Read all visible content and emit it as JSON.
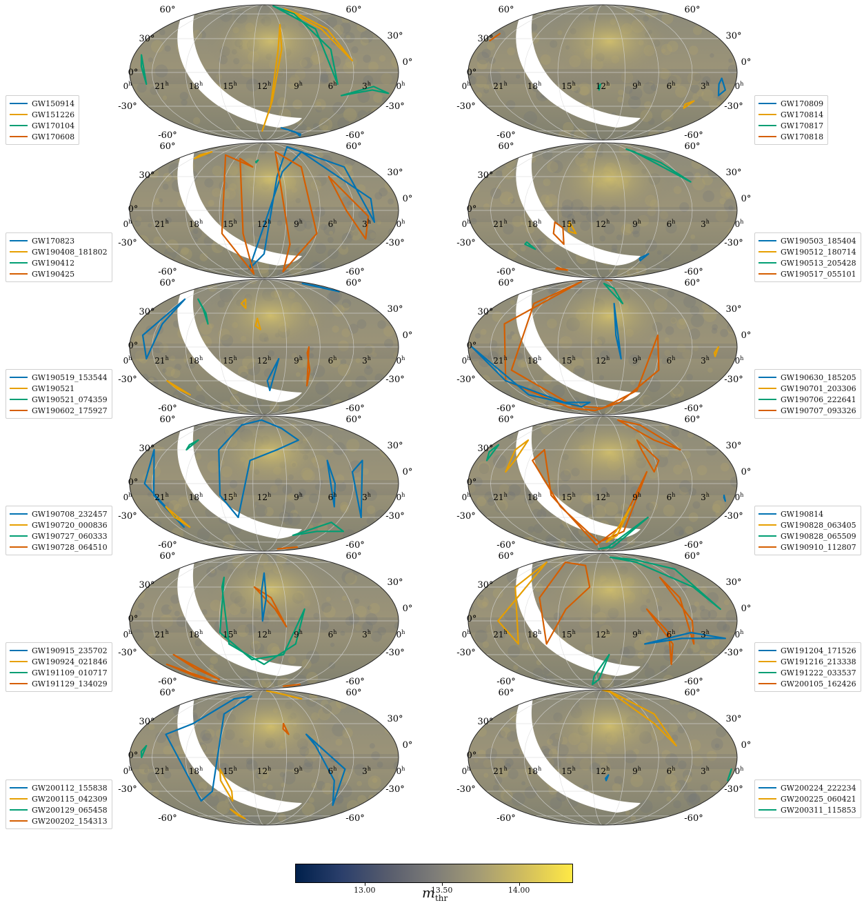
{
  "colorbar": {
    "label_main": "m",
    "label_sub": "thr",
    "ticks": [
      "13.00",
      "13.50",
      "14.00"
    ],
    "tick_values": [
      13.0,
      13.5,
      14.0
    ],
    "range": [
      12.55,
      14.35
    ],
    "colormap": "cividis",
    "colors": [
      "#00204c",
      "#2b3f6b",
      "#575c6d",
      "#7d7c78",
      "#a59c74",
      "#d3bf5d",
      "#ffe945"
    ]
  },
  "axis_labels": {
    "lat": [
      "60°",
      "30°",
      "0°",
      "-30°",
      "-60°"
    ],
    "ra": [
      "0h",
      "21h",
      "18h",
      "15h",
      "12h",
      "9h",
      "6h",
      "3h",
      "0h"
    ]
  },
  "series_colors": [
    "#0072b2",
    "#e69f00",
    "#009e73",
    "#d55e00"
  ],
  "panels": [
    {
      "id": "p1",
      "events": [
        "GW150914",
        "GW151226",
        "GW170104",
        "GW170608"
      ]
    },
    {
      "id": "p2",
      "events": [
        "GW170809",
        "GW170814",
        "GW170817",
        "GW170818"
      ]
    },
    {
      "id": "p3",
      "events": [
        "GW170823",
        "GW190408_181802",
        "GW190412",
        "GW190425"
      ]
    },
    {
      "id": "p4",
      "events": [
        "GW190503_185404",
        "GW190512_180714",
        "GW190513_205428",
        "GW190517_055101"
      ]
    },
    {
      "id": "p5",
      "events": [
        "GW190519_153544",
        "GW190521",
        "GW190521_074359",
        "GW190602_175927"
      ]
    },
    {
      "id": "p6",
      "events": [
        "GW190630_185205",
        "GW190701_203306",
        "GW190706_222641",
        "GW190707_093326"
      ]
    },
    {
      "id": "p7",
      "events": [
        "GW190708_232457",
        "GW190720_000836",
        "GW190727_060333",
        "GW190728_064510"
      ]
    },
    {
      "id": "p8",
      "events": [
        "GW190814",
        "GW190828_063405",
        "GW190828_065509",
        "GW190910_112807"
      ]
    },
    {
      "id": "p9",
      "events": [
        "GW190915_235702",
        "GW190924_021846",
        "GW191109_010717",
        "GW191129_134029"
      ]
    },
    {
      "id": "p10",
      "events": [
        "GW191204_171526",
        "GW191216_213338",
        "GW191222_033537",
        "GW200105_162426"
      ]
    },
    {
      "id": "p11",
      "events": [
        "GW200112_155838",
        "GW200115_042309",
        "GW200129_065458",
        "GW200202_154313"
      ]
    },
    {
      "id": "p12",
      "events": [
        "GW200224_222234",
        "GW200225_060421",
        "GW200311_115853"
      ]
    }
  ]
}
